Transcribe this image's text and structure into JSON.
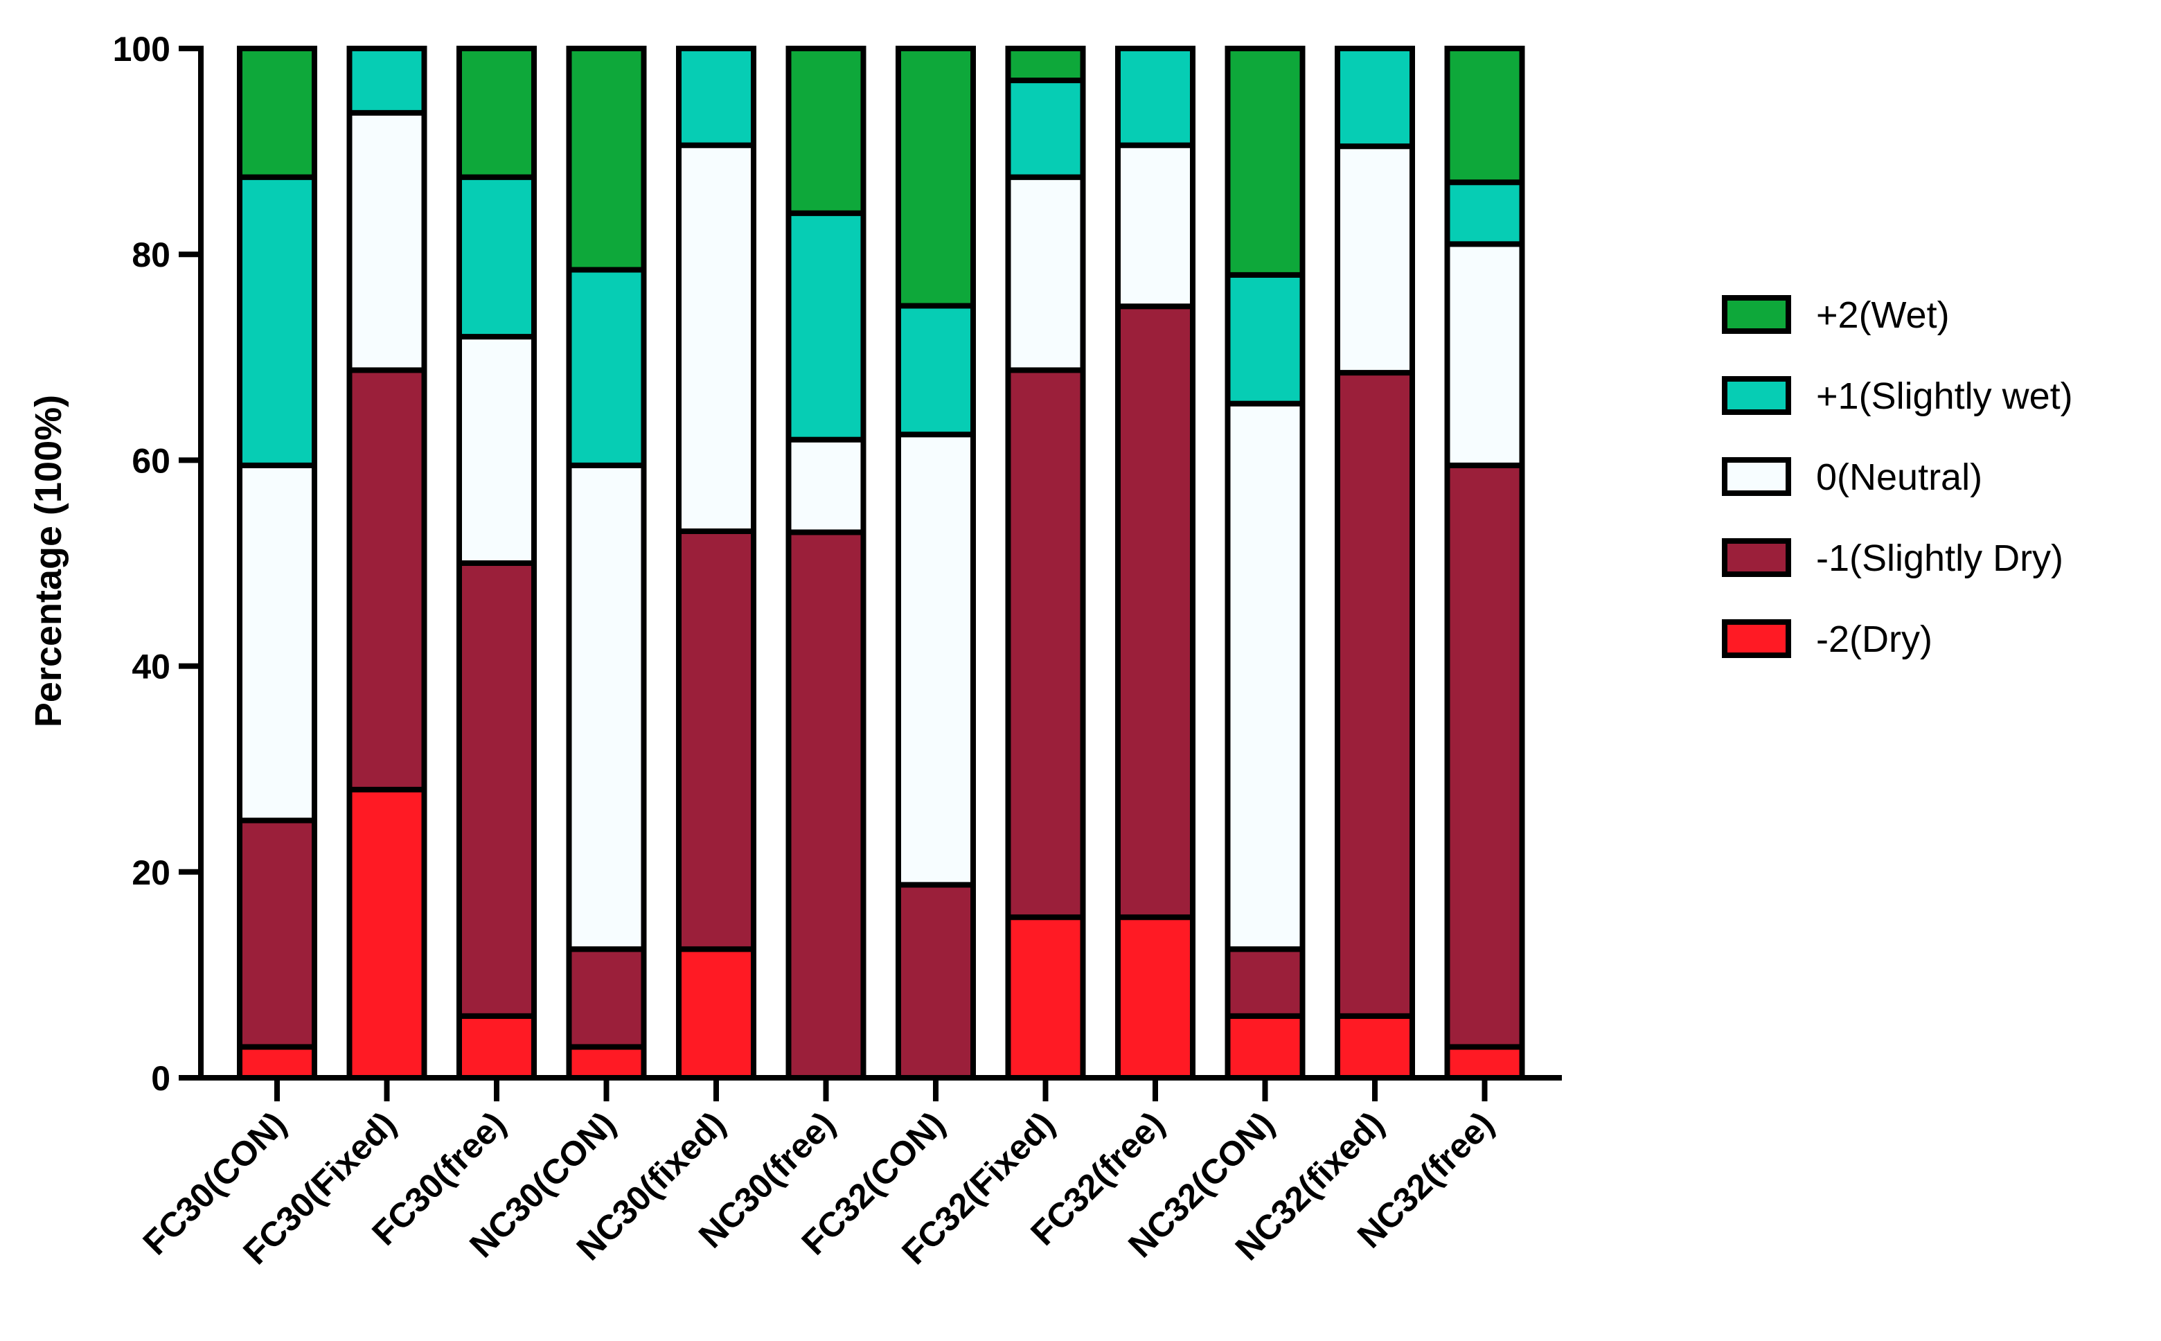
{
  "chart_data": {
    "type": "bar",
    "stacked": true,
    "title": "",
    "xlabel": "",
    "ylabel": "Percentage (100%)",
    "ylim": [
      0,
      100
    ],
    "yticks": [
      0,
      20,
      40,
      60,
      80,
      100
    ],
    "grid": false,
    "legend_position": "right",
    "categories": [
      "FC30(CON)",
      "FC30(Fixed)",
      "FC30(free)",
      "NC30(CON)",
      "NC30(fixed)",
      "NC30(free)",
      "FC32(CON)",
      "FC32(Fixed)",
      "FC32(free)",
      "NC32(CON)",
      "NC32(fixed)",
      "NC32(free)"
    ],
    "series": [
      {
        "name": "-2(Dry)",
        "color": "#ff1a24",
        "values": [
          3,
          28,
          6,
          3,
          12.5,
          0,
          0,
          15.6,
          15.6,
          6,
          6,
          3
        ]
      },
      {
        "name": "-1(Slightly Dry)",
        "color": "#9b1f3a",
        "values": [
          22,
          40.75,
          44,
          9.5,
          40.6,
          53,
          18.75,
          53.15,
          59.35,
          6.5,
          62.5,
          56.5
        ]
      },
      {
        "name": "0(Neutral)",
        "color": "#f7fdff",
        "values": [
          34.5,
          25,
          22,
          47,
          37.5,
          9,
          43.75,
          18.75,
          15.65,
          53,
          22,
          21.5
        ]
      },
      {
        "name": "+1(Slightly wet)",
        "color": "#06cdb4",
        "values": [
          28,
          6.25,
          15.5,
          19,
          9.4,
          22,
          12.5,
          9.4,
          9.4,
          12.5,
          9.5,
          6
        ]
      },
      {
        "name": "+2(Wet)",
        "color": "#0ea83a",
        "values": [
          12.5,
          0,
          12.5,
          21.5,
          0,
          16,
          25,
          3.1,
          0,
          22,
          0,
          13
        ]
      }
    ],
    "legend_order": [
      "+2(Wet)",
      "+1(Slightly wet)",
      "0(Neutral)",
      "-1(Slightly Dry)",
      "-2(Dry)"
    ]
  }
}
